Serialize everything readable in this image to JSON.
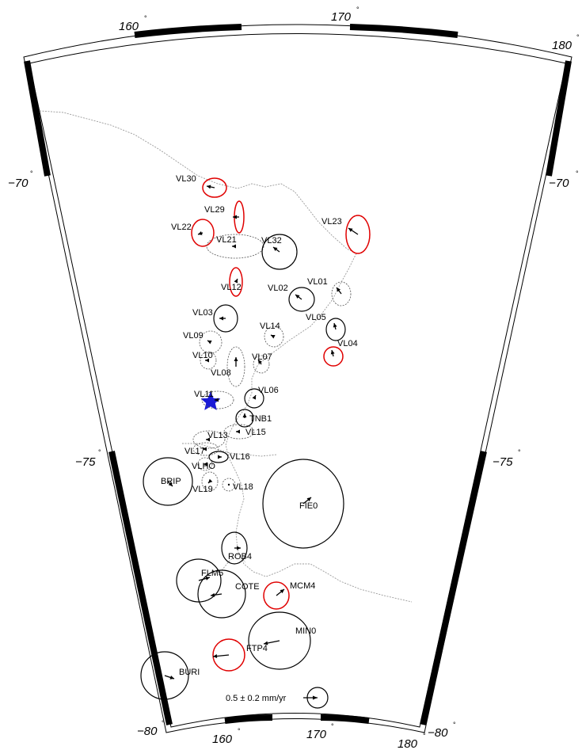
{
  "map": {
    "axis_labels": {
      "lon_160_top": "160",
      "lon_170_top": "170",
      "lon_180_top": "180",
      "lon_160_bottom": "160",
      "lon_170_bottom": "170",
      "lon_180_bottom": "180",
      "lat_70_left": "−70",
      "lat_70_right": "−70",
      "lat_75_left": "−75",
      "lat_75_right": "−75",
      "lat_80_left": "−80",
      "lat_80_right": "−80",
      "degree_symbol": "°"
    },
    "scale_label": "0.5 ± 0.2 mm/yr",
    "colors": {
      "frame": "#000000",
      "coastline": "#9a9a9a",
      "ellipse_default": "#000000",
      "ellipse_highlight": "#e00000",
      "ellipse_dashed": "#555555",
      "epicenter_star": "#1a1ad6"
    },
    "epicenter": {
      "symbol": "star-icon"
    },
    "stations": [
      {
        "id": "VL30",
        "label": "VL30",
        "color": "red"
      },
      {
        "id": "VL29",
        "label": "VL29",
        "color": "red"
      },
      {
        "id": "VL22",
        "label": "VL22",
        "color": "red"
      },
      {
        "id": "VL21",
        "label": "VL21",
        "color": "dashed"
      },
      {
        "id": "VL32",
        "label": "VL32",
        "color": "black"
      },
      {
        "id": "VL23",
        "label": "VL23",
        "color": "red"
      },
      {
        "id": "VL12",
        "label": "VL12",
        "color": "red"
      },
      {
        "id": "VL02",
        "label": "VL02",
        "color": "black"
      },
      {
        "id": "VL01",
        "label": "VL01",
        "color": "dashed"
      },
      {
        "id": "VL05",
        "label": "VL05",
        "color": "black"
      },
      {
        "id": "VL04",
        "label": "VL04",
        "color": "red"
      },
      {
        "id": "VL03",
        "label": "VL03",
        "color": "black"
      },
      {
        "id": "VL14",
        "label": "VL14",
        "color": "dashed"
      },
      {
        "id": "VL09",
        "label": "VL09",
        "color": "dashed"
      },
      {
        "id": "VL10",
        "label": "VL10",
        "color": "dashed"
      },
      {
        "id": "VL07",
        "label": "VL07",
        "color": "dashed"
      },
      {
        "id": "VL08",
        "label": "VL08",
        "color": "dashed"
      },
      {
        "id": "VL11",
        "label": "VL11",
        "color": "dashed"
      },
      {
        "id": "VL06",
        "label": "VL06",
        "color": "black"
      },
      {
        "id": "TNB1",
        "label": "TNB1",
        "color": "black"
      },
      {
        "id": "VL15",
        "label": "VL15",
        "color": "dashed"
      },
      {
        "id": "VL13",
        "label": "VL13",
        "color": "dashed"
      },
      {
        "id": "VL17",
        "label": "VL17",
        "color": "dashed"
      },
      {
        "id": "VL16",
        "label": "VL16",
        "color": "black"
      },
      {
        "id": "VLHO",
        "label": "VLHO",
        "color": "dashed"
      },
      {
        "id": "BRIP",
        "label": "BRIP",
        "color": "black"
      },
      {
        "id": "VL19",
        "label": "VL19",
        "color": "dashed"
      },
      {
        "id": "VL18",
        "label": "VL18",
        "color": "dashed"
      },
      {
        "id": "FIE0",
        "label": "FIE0",
        "color": "black"
      },
      {
        "id": "ROB4",
        "label": "ROB4",
        "color": "black"
      },
      {
        "id": "FLM5",
        "label": "FLM5",
        "color": "black"
      },
      {
        "id": "COTE",
        "label": "COTE",
        "color": "black"
      },
      {
        "id": "MCM4",
        "label": "MCM4",
        "color": "red"
      },
      {
        "id": "MIN0",
        "label": "MIN0",
        "color": "black"
      },
      {
        "id": "FTP4",
        "label": "FTP4",
        "color": "red"
      },
      {
        "id": "BURI",
        "label": "BURI",
        "color": "black"
      }
    ]
  }
}
